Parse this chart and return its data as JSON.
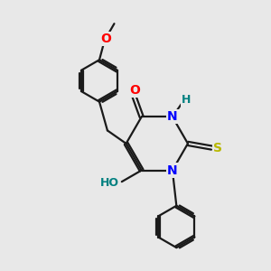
{
  "bg_color": "#e8e8e8",
  "bond_color": "#1a1a1a",
  "bond_width": 1.6,
  "atom_colors": {
    "O": "#ff0000",
    "N": "#0000ff",
    "S": "#b8b800",
    "HO": "#008080",
    "H": "#008080",
    "C": "#1a1a1a"
  },
  "font_size": 9,
  "fig_size": [
    3.0,
    3.0
  ],
  "dpi": 100
}
